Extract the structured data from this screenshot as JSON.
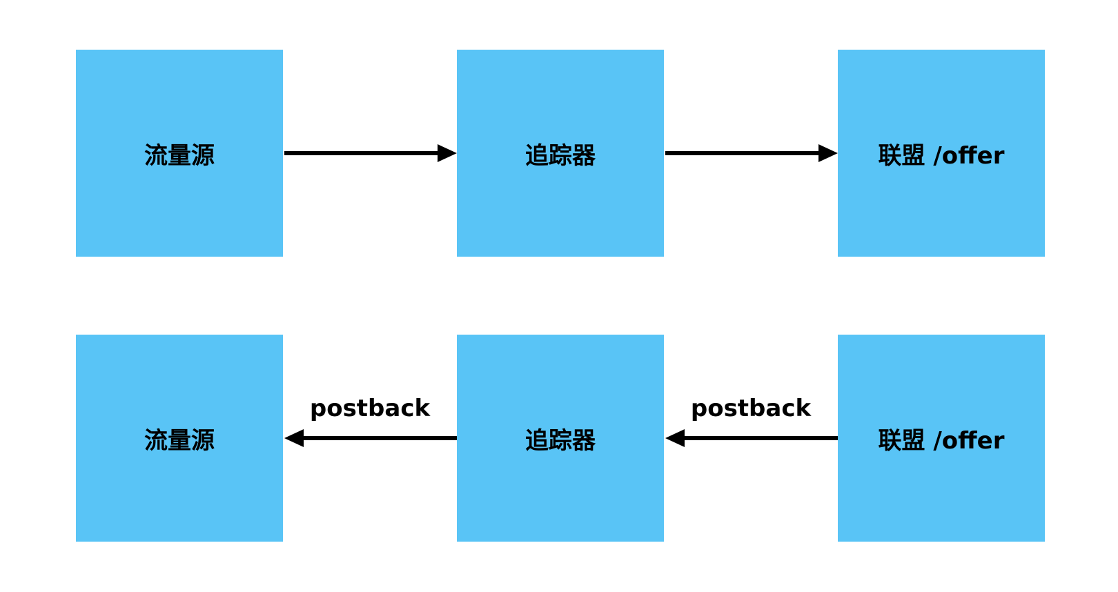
{
  "colors": {
    "node_fill": "#59c4f6",
    "arrow": "#000000",
    "background": "#ffffff"
  },
  "forward_flow": {
    "nodes": [
      {
        "label": "流量源"
      },
      {
        "label": "追踪器"
      },
      {
        "label": "联盟 /offer"
      }
    ]
  },
  "postback_flow": {
    "nodes": [
      {
        "label": "流量源"
      },
      {
        "label": "追踪器"
      },
      {
        "label": "联盟 /offer"
      }
    ],
    "edges": [
      {
        "label": "postback"
      },
      {
        "label": "postback"
      }
    ]
  }
}
